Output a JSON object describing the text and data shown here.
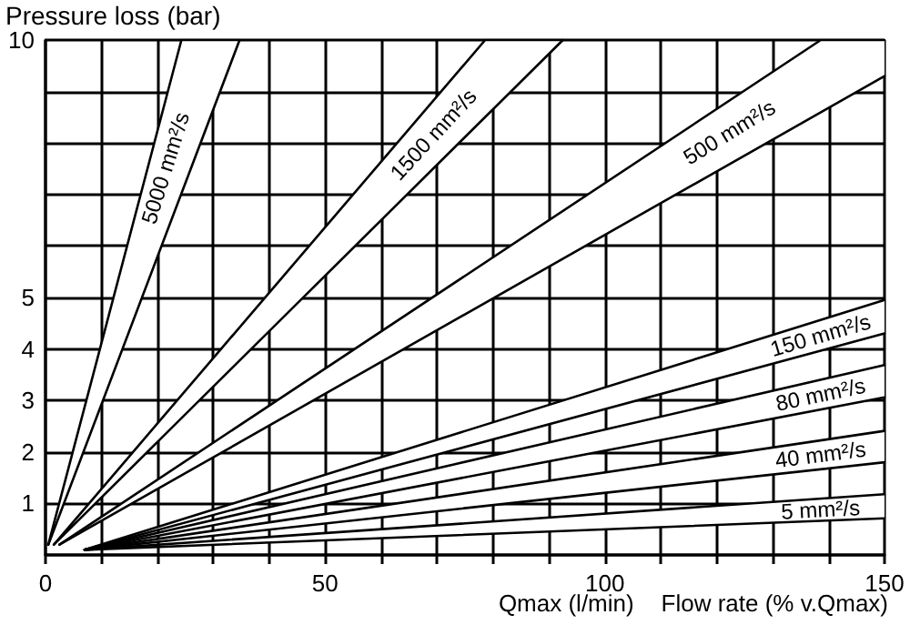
{
  "chart_data": {
    "type": "line",
    "ylabel": "Pressure loss (bar)",
    "xlabel": "Flow rate (% v.Qmax)",
    "annotations": [
      "Qmax (l/min)"
    ],
    "xlim": [
      0,
      150
    ],
    "ylim": [
      0,
      10
    ],
    "xticks": [
      0,
      {
        "value": 10,
        "label": null
      },
      {
        "value": 20,
        "label": null
      },
      {
        "value": 30,
        "label": null
      },
      {
        "value": 40,
        "label": null
      },
      50,
      {
        "value": 60,
        "label": null
      },
      {
        "value": 70,
        "label": null
      },
      {
        "value": 80,
        "label": null
      },
      {
        "value": 90,
        "label": null
      },
      100,
      {
        "value": 110,
        "label": null
      },
      {
        "value": 120,
        "label": null
      },
      {
        "value": 130,
        "label": null
      },
      {
        "value": 140,
        "label": null
      },
      150
    ],
    "yticks": [
      {
        "value": 0,
        "label": null
      },
      1,
      2,
      3,
      4,
      5,
      {
        "value": 6,
        "label": null
      },
      {
        "value": 7,
        "label": null
      },
      {
        "value": 8,
        "label": null
      },
      {
        "value": 9,
        "label": null
      },
      10
    ],
    "grid": true,
    "legend": false,
    "marker": "none",
    "series": [
      {
        "name": "5000 mm²/s",
        "color": "#000000",
        "x": [
          0.5,
          24.3,
          34.7
        ],
        "values": [
          0.2,
          10,
          10
        ]
      },
      {
        "color": "#000000",
        "x": [
          0.5,
          34.7
        ],
        "values": [
          0.2,
          10
        ]
      },
      {
        "name": "1500 mm²/s",
        "color": "#000000",
        "x": [
          1.5,
          78.6,
          92.5
        ],
        "values": [
          0.2,
          10,
          10
        ]
      },
      {
        "color": "#000000",
        "x": [
          1.5,
          92.5
        ],
        "values": [
          0.2,
          10
        ]
      },
      {
        "name": "500 mm²/s",
        "color": "#000000",
        "x": [
          2.5,
          138.6,
          150
        ],
        "values": [
          0.2,
          10,
          10
        ]
      },
      {
        "color": "#000000",
        "x": [
          2.5,
          150
        ],
        "values": [
          0.2,
          9.3
        ]
      },
      {
        "name": "150 mm²/s",
        "color": "#000000",
        "x": [
          7,
          150
        ],
        "values": [
          0.1,
          4.95
        ]
      },
      {
        "color": "#000000",
        "x": [
          7,
          150
        ],
        "values": [
          0.1,
          4.3
        ]
      },
      {
        "name": "80 mm²/s",
        "color": "#000000",
        "x": [
          7,
          150
        ],
        "values": [
          0.1,
          3.69
        ]
      },
      {
        "color": "#000000",
        "x": [
          7,
          150
        ],
        "values": [
          0.1,
          3.06
        ]
      },
      {
        "name": "40 mm²/s",
        "color": "#000000",
        "x": [
          7,
          150
        ],
        "values": [
          0.1,
          2.41
        ]
      },
      {
        "color": "#000000",
        "x": [
          7,
          150
        ],
        "values": [
          0.1,
          1.8
        ]
      },
      {
        "name": "5 mm²/s",
        "color": "#000000",
        "x": [
          7,
          150
        ],
        "values": [
          0.1,
          1.18
        ]
      },
      {
        "color": "#000000",
        "x": [
          7,
          150
        ],
        "values": [
          0.1,
          0.71
        ]
      }
    ]
  }
}
